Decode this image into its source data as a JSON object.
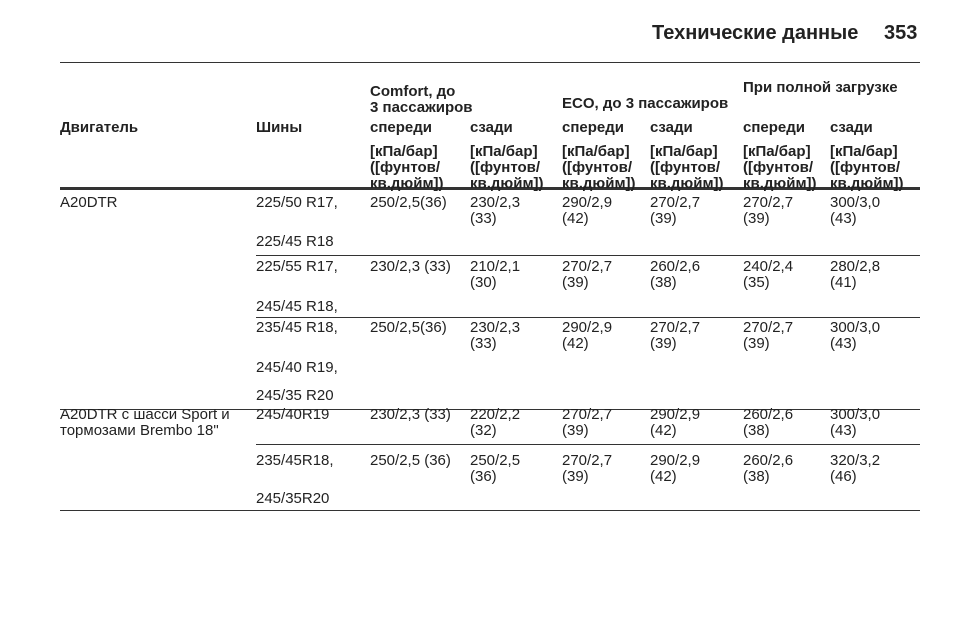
{
  "header": {
    "title": "Технические данные",
    "page": "353"
  },
  "table": {
    "group_headers": [
      {
        "text": "Comfort, до\n3 пассажиров",
        "column": 2
      },
      {
        "text": "ECO, до 3 пассажиров",
        "column": 4
      },
      {
        "text": "При полной загрузке",
        "column": 6
      }
    ],
    "columns": [
      "Двигатель",
      "Шины",
      "спереди",
      "сзади",
      "спереди",
      "сзади",
      "спереди",
      "сзади"
    ],
    "units": [
      "[кПа/бар]\n([фунтов/\nкв.дюйм])",
      "[кПа/бар]\n([фунтов/\nкв.дюйм])",
      "[кПа/бар]\n([фунтов/\nкв.дюйм])",
      "[кПа/бар]\n([фунтов/\nкв.дюйм])",
      "[кПа/бар]\n([фунтов/\nкв.дюйм])",
      "[кПа/бар]\n([фунтов/\nкв.дюйм])"
    ],
    "groups": [
      {
        "engine": "A20DTR",
        "subrows": [
          {
            "tires": [
              "225/50 R17,",
              "225/45 R18"
            ],
            "values": [
              "250/2,5(36)",
              "230/2,3\n(33)",
              "290/2,9\n(42)",
              "270/2,7\n(39)",
              "270/2,7\n(39)",
              "300/3,0\n(43)"
            ]
          },
          {
            "tires": [
              "225/55 R17,",
              "245/45 R18,"
            ],
            "values": [
              "230/2,3 (33)",
              "210/2,1\n(30)",
              "270/2,7\n(39)",
              "260/2,6\n(38)",
              "240/2,4\n(35)",
              "280/2,8\n(41)"
            ]
          },
          {
            "tires": [
              "235/45 R18,",
              "245/40 R19,",
              "245/35 R20"
            ],
            "values": [
              "250/2,5(36)",
              "230/2,3\n(33)",
              "290/2,9\n(42)",
              "270/2,7\n(39)",
              "270/2,7\n(39)",
              "300/3,0\n(43)"
            ]
          }
        ]
      },
      {
        "engine": "A20DTR с шасси Sport и\nтормозами Brembo 18\"",
        "subrows": [
          {
            "tires": [
              "245/40R19"
            ],
            "values": [
              "230/2,3 (33)",
              "220/2,2\n(32)",
              "270/2,7\n(39)",
              "290/2,9\n(42)",
              "260/2,6\n(38)",
              "300/3,0\n(43)"
            ]
          },
          {
            "tires": [
              "235/45R18,",
              "245/35R20"
            ],
            "values": [
              "250/2,5 (36)",
              "250/2,5\n(36)",
              "270/2,7\n(39)",
              "290/2,9\n(42)",
              "260/2,6\n(38)",
              "320/3,2\n(46)"
            ]
          }
        ]
      }
    ]
  }
}
